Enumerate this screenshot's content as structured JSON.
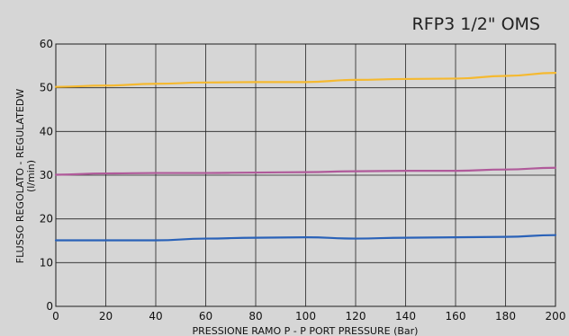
{
  "chart_data": {
    "type": "line",
    "title": "RFP3 1/2\" OMS",
    "xlabel": "PRESSIONE RAMO P - P PORT PRESSURE (Bar)",
    "ylabel": "FLUSSO REGOLATO - REGULATEDW",
    "ylabel_unit": "(l/min)",
    "xlim": [
      0,
      200
    ],
    "ylim": [
      0,
      60
    ],
    "x_ticks": [
      0,
      20,
      40,
      60,
      80,
      100,
      120,
      140,
      160,
      180,
      200
    ],
    "y_ticks": [
      0,
      10,
      20,
      30,
      40,
      50,
      60
    ],
    "grid": true,
    "series": [
      {
        "color": "#f5b930",
        "x": [
          0,
          20,
          40,
          60,
          80,
          100,
          120,
          140,
          160,
          180,
          200
        ],
        "values": [
          50.2,
          50.5,
          50.9,
          51.2,
          51.3,
          51.3,
          51.8,
          52.0,
          52.1,
          52.7,
          53.4
        ]
      },
      {
        "color": "#b05a9a",
        "x": [
          0,
          20,
          40,
          60,
          80,
          100,
          120,
          140,
          160,
          180,
          200
        ],
        "values": [
          30.1,
          30.4,
          30.5,
          30.5,
          30.6,
          30.7,
          30.9,
          31.0,
          31.0,
          31.3,
          31.7
        ]
      },
      {
        "color": "#2a62b8",
        "x": [
          0,
          20,
          40,
          60,
          80,
          100,
          120,
          140,
          160,
          180,
          200
        ],
        "values": [
          15.1,
          15.1,
          15.1,
          15.5,
          15.7,
          15.8,
          15.5,
          15.7,
          15.8,
          15.9,
          16.3
        ]
      }
    ]
  }
}
